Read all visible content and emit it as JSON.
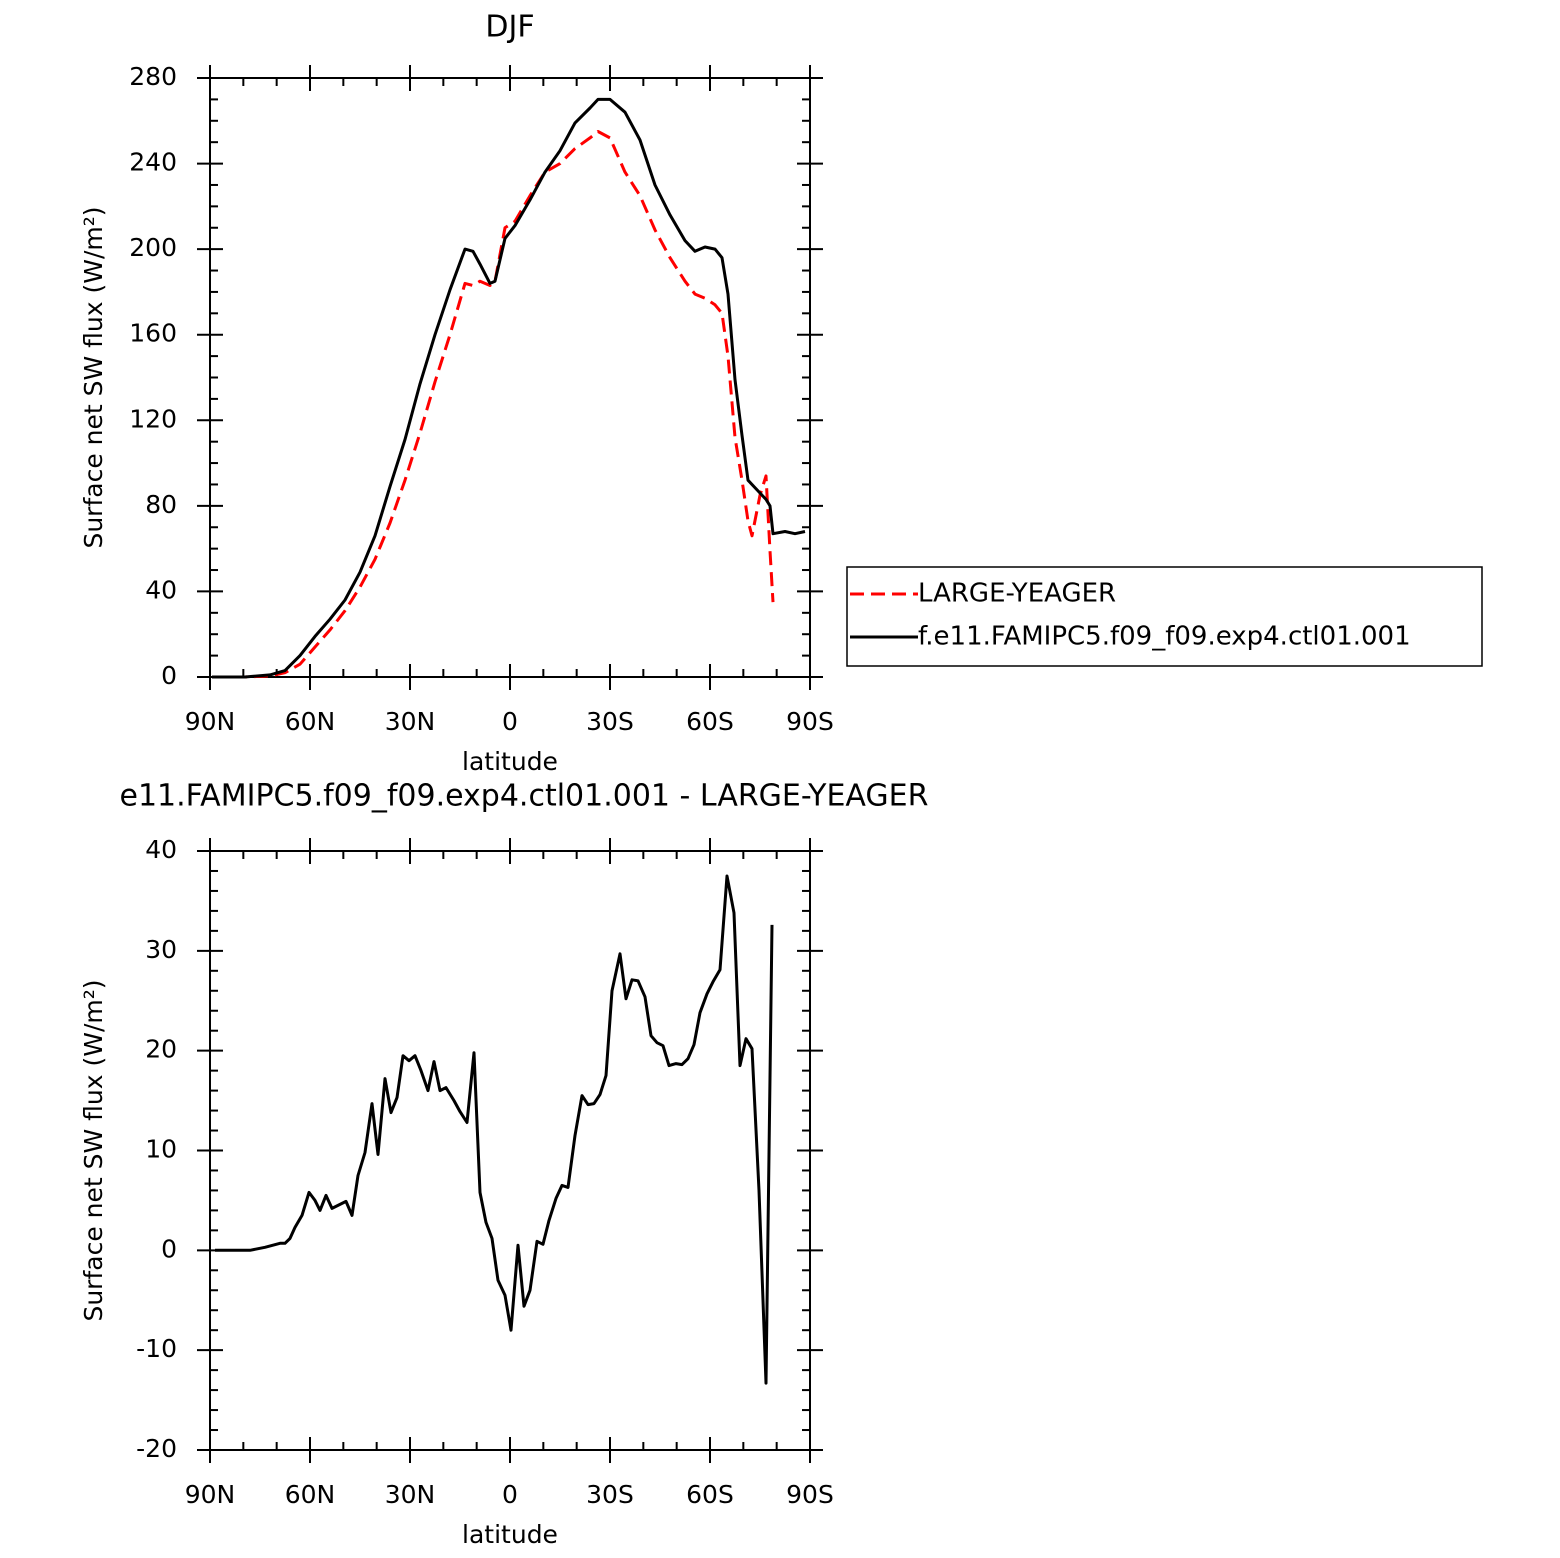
{
  "chart_data": [
    {
      "type": "line",
      "title": "DJF",
      "x_label": "latitude",
      "y_label": "Surface net SW flux (W/m²)",
      "x": [
        89.4,
        79.5,
        72,
        67.5,
        63,
        58.5,
        54,
        49.5,
        45,
        40.5,
        36,
        31.5,
        27,
        22.5,
        18,
        13.5,
        11.1,
        9,
        6,
        4.5,
        1.5,
        -1.5,
        -6,
        -10.5,
        -15,
        -19.5,
        -24,
        -26.4,
        -30,
        -34.5,
        -39,
        -43.5,
        -48,
        -52.5,
        -55.5,
        -58.5,
        -61.5,
        -63.6,
        -65.4,
        -67.5,
        -69.6,
        -71.4,
        -72.6,
        -75,
        -76.8,
        -78,
        -78.9,
        -82.5,
        -85.5,
        -88.5
      ],
      "xlim": [
        90,
        -90
      ],
      "xticks": [
        {
          "value": 90,
          "label": "90N"
        },
        {
          "value": 60,
          "label": "60N"
        },
        {
          "value": 30,
          "label": "30N"
        },
        0,
        {
          "value": -30,
          "label": "30S"
        },
        {
          "value": -60,
          "label": "60S"
        },
        {
          "value": -90,
          "label": "90S"
        }
      ],
      "ylim": [
        0,
        280
      ],
      "yticks": [
        0,
        40,
        80,
        120,
        160,
        200,
        240,
        280
      ],
      "legend": "right",
      "series": [
        {
          "name": "LARGE-YEAGER",
          "color": "#ff0000",
          "dash": "dashed",
          "values": [
            0,
            0,
            0.5,
            2,
            6,
            14,
            22,
            31,
            42,
            55,
            72,
            92,
            114,
            138,
            160,
            184,
            183,
            185,
            183,
            185,
            210,
            213,
            225,
            236,
            240,
            247,
            252,
            255,
            252,
            236,
            225,
            209,
            196,
            185,
            179,
            177,
            174,
            170,
            150,
            112,
            92,
            73,
            66,
            85,
            94,
            59,
            35,
            null,
            null,
            null
          ]
        },
        {
          "name": "f.e11.FAMIPC5.f09_f09.exp4.ctl01.001",
          "color": "#000000",
          "dash": "solid",
          "values": [
            0,
            0,
            1,
            3,
            10,
            19,
            27,
            36,
            49,
            66,
            89,
            111,
            137,
            160,
            181,
            200,
            199,
            193,
            184,
            185,
            205,
            211,
            223,
            236,
            246,
            259,
            266,
            270,
            270,
            264,
            251,
            230,
            216,
            204,
            199,
            201,
            200,
            196,
            179,
            139,
            113,
            92,
            90,
            86,
            83,
            80,
            67,
            68,
            67,
            68
          ]
        }
      ]
    },
    {
      "type": "line",
      "title": "e11.FAMIPC5.f09_f09.exp4.ctl01.001 - LARGE-YEAGER",
      "x_label": "latitude",
      "y_label": "Surface net SW flux (W/m²)",
      "x": [
        88.5,
        78,
        73.5,
        69,
        67.5,
        66,
        64.5,
        62.4,
        60.3,
        58.5,
        57,
        55.2,
        53.4,
        51.6,
        49.2,
        47.4,
        45.6,
        43.5,
        41.4,
        39.6,
        37.5,
        35.7,
        33.9,
        32.1,
        30.3,
        28.5,
        26.7,
        24.6,
        22.8,
        21,
        19.2,
        16.8,
        15,
        12.9,
        10.8,
        9,
        7.2,
        5.4,
        3.6,
        1.5,
        -0.3,
        -2.4,
        -4.2,
        -6,
        -8.1,
        -9.9,
        -11.7,
        -13.8,
        -15.6,
        -17.4,
        -19.5,
        -21.6,
        -23.4,
        -25.2,
        -27,
        -28.8,
        -30.6,
        -33,
        -34.8,
        -36.6,
        -38.4,
        -40.5,
        -42.3,
        -44.1,
        -45.9,
        -47.7,
        -49.8,
        -51.6,
        -53.4,
        -55.2,
        -57,
        -59.1,
        -60.9,
        -63,
        -65.1,
        -67.2,
        -69,
        -70.8,
        -72.6,
        -74.7,
        -76.8,
        -78.6
      ],
      "xlim": [
        90,
        -90
      ],
      "xticks": [
        {
          "value": 90,
          "label": "90N"
        },
        {
          "value": 60,
          "label": "60N"
        },
        {
          "value": 30,
          "label": "30N"
        },
        0,
        {
          "value": -30,
          "label": "30S"
        },
        {
          "value": -60,
          "label": "60S"
        },
        {
          "value": -90,
          "label": "90S"
        }
      ],
      "ylim": [
        -20,
        40
      ],
      "yticks": [
        -20,
        -10,
        0,
        10,
        20,
        30,
        40
      ],
      "series": [
        {
          "color": "#000000",
          "dash": "solid",
          "values": [
            0,
            0,
            0.3,
            0.7,
            0.7,
            1.2,
            2.3,
            3.5,
            5.8,
            5,
            4,
            5.5,
            4.2,
            4.5,
            4.9,
            3.5,
            7.5,
            9.8,
            14.7,
            9.6,
            17.2,
            13.8,
            15.3,
            19.5,
            19,
            19.5,
            18,
            16,
            18.9,
            16,
            16.3,
            15,
            13.9,
            12.8,
            19.8,
            5.8,
            2.8,
            1.2,
            -3,
            -4.5,
            -8,
            0.5,
            -5.6,
            -4,
            0.9,
            0.6,
            3,
            5.2,
            6.5,
            6.3,
            11.5,
            15.5,
            14.6,
            14.7,
            15.6,
            17.5,
            26,
            29.7,
            25.2,
            27.1,
            27,
            25.4,
            21.5,
            20.8,
            20.5,
            18.5,
            18.7,
            18.6,
            19.2,
            20.6,
            23.8,
            25.7,
            26.9,
            28.1,
            37.5,
            33.8,
            18.5,
            21.2,
            20.2,
            6,
            -13.3,
            32.6
          ]
        }
      ]
    }
  ]
}
